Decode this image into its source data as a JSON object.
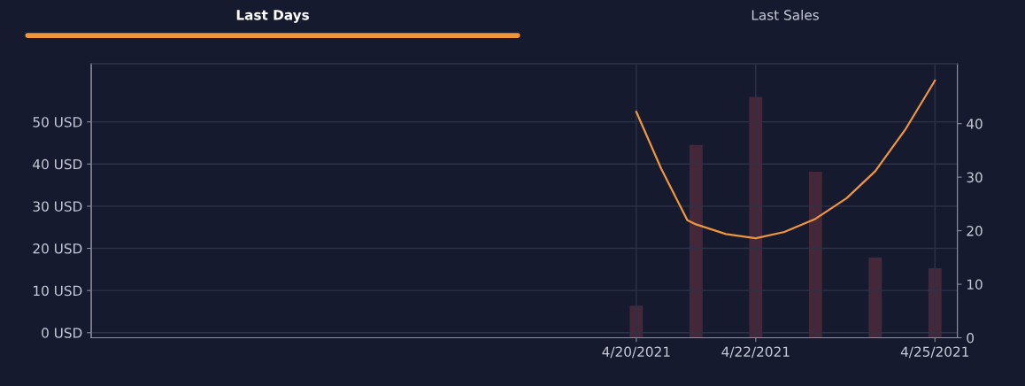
{
  "chart_data": {
    "type": "bar",
    "annotations": [
      "Last Days",
      "Last Sales"
    ],
    "x": [
      "2021-04-20",
      "2021-04-21",
      "2021-04-22",
      "2021-04-23",
      "2021-04-24",
      "2021-04-25"
    ],
    "series": [
      {
        "axis": "y2",
        "color": "#44283a",
        "values": [
          6,
          36,
          45,
          31,
          15,
          13
        ]
      },
      {
        "type": "line",
        "axis": "y",
        "color": "#f0963a",
        "x": [
          "2021-04-20",
          "2021-04-20T10:00",
          "2021-04-20T20:30",
          "2021-04-21",
          "2021-04-21T12:00",
          "2021-04-22",
          "2021-04-22T11:30",
          "2021-04-23",
          "2021-04-23T12:30",
          "2021-04-24",
          "2021-04-24T12:00",
          "2021-04-25"
        ],
        "values": [
          52.4,
          38.9,
          26.7,
          25.7,
          23.4,
          22.4,
          23.9,
          27.0,
          31.9,
          38.3,
          48.1,
          59.8
        ]
      }
    ],
    "xlim": [
      "2021-04-10T21:00",
      "2021-04-25T09:00"
    ],
    "xticks": [
      {
        "value": "2021-04-20",
        "label": "4/20/2021"
      },
      {
        "value": "2021-04-22",
        "label": "4/22/2021"
      },
      {
        "value": "2021-04-25",
        "label": "4/25/2021"
      }
    ],
    "ylim": [
      -1.2,
      63.8
    ],
    "yticks": [
      {
        "value": 0,
        "label": "0 USD"
      },
      {
        "value": 10,
        "label": "10 USD"
      },
      {
        "value": 20,
        "label": "20 USD"
      },
      {
        "value": 30,
        "label": "30 USD"
      },
      {
        "value": 40,
        "label": "40 USD"
      },
      {
        "value": 50,
        "label": "50 USD"
      }
    ],
    "y2lim": [
      0,
      51.2
    ],
    "y2ticks": [
      0,
      10,
      20,
      30,
      40
    ],
    "grid": true,
    "marker": "none",
    "line_style": "solid"
  }
}
